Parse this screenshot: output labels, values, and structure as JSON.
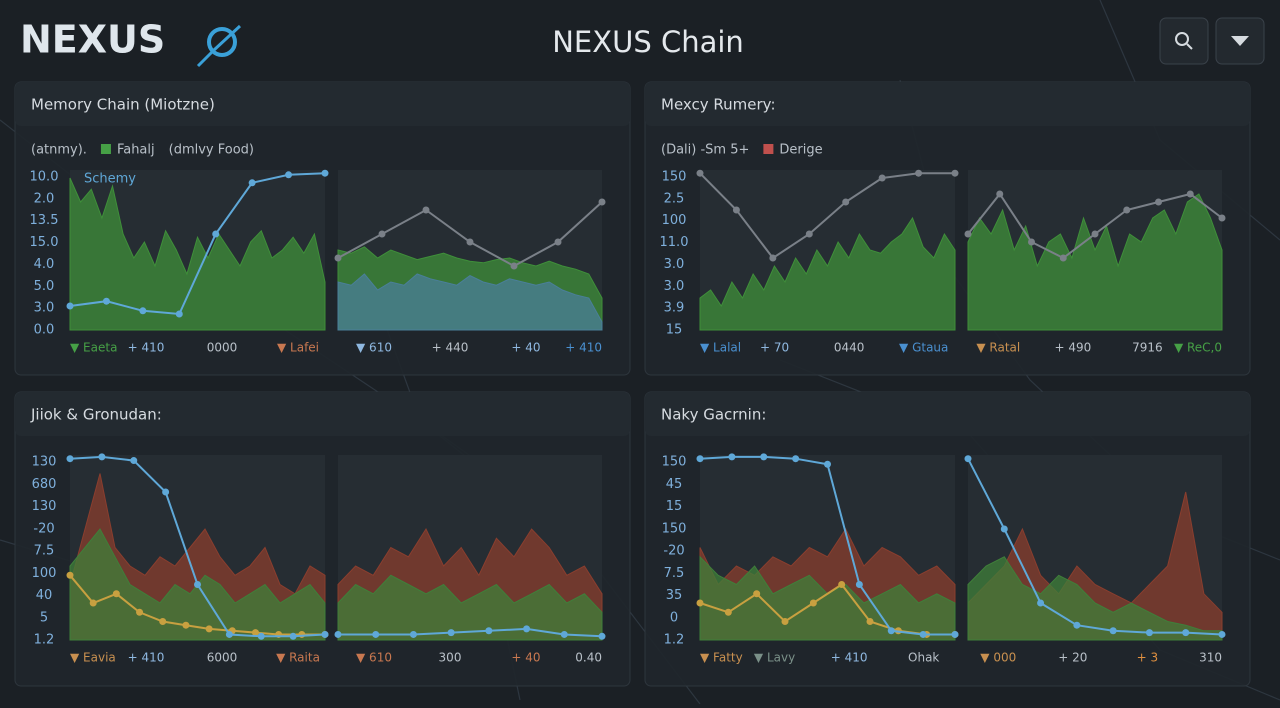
{
  "header": {
    "logo": "NEXUS",
    "title": "NEXUS Chain"
  },
  "panels": [
    {
      "title": "Memory Chain (Miotzne)",
      "overlay": "Schemy",
      "legend": [
        {
          "text": "(atnmy)."
        },
        {
          "text": "Fahalj",
          "color": "#46a046"
        },
        {
          "text": "(dmlvy Food)"
        }
      ],
      "y_labels": [
        "10.0",
        "2.0",
        "13.5",
        "15.0",
        "4.0",
        "5.0",
        "3.0",
        "0.0"
      ],
      "footer": [
        {
          "text": "▼ Eaeta",
          "color": "#46a046"
        },
        {
          "text": "+ 410",
          "color": "#8fb8e0"
        },
        {
          "text": "0000",
          "color": "#b8c0c8"
        },
        {
          "text": "▼ Lafei",
          "color": "#c87850"
        },
        {
          "text": "▼ 610",
          "color": "#8fb8e0"
        },
        {
          "text": "+ 440",
          "color": "#b8c0c8"
        },
        {
          "text": "+ 40",
          "color": "#8fb8e0"
        },
        {
          "text": "+ 410",
          "color": "#4a90d0"
        }
      ],
      "charts": [
        {
          "ylim": [
            0,
            100
          ],
          "series": [
            {
              "kind": "area",
              "color": "#3f8f3a",
              "values": [
                95,
                80,
                88,
                70,
                90,
                60,
                45,
                55,
                40,
                62,
                50,
                35,
                58,
                45,
                60,
                50,
                40,
                55,
                62,
                45,
                50,
                58,
                48,
                60,
                30
              ]
            },
            {
              "kind": "line",
              "color": "#5fa8d8",
              "values": [
                15,
                18,
                12,
                10,
                60,
                92,
                97,
                98
              ]
            }
          ]
        },
        {
          "ylim": [
            0,
            100
          ],
          "series": [
            {
              "kind": "area",
              "color": "#3f8f3a",
              "values": [
                50,
                48,
                52,
                45,
                50,
                47,
                44,
                46,
                48,
                45,
                43,
                42,
                44,
                45,
                42,
                40,
                43,
                40,
                38,
                35,
                20
              ]
            },
            {
              "kind": "area",
              "color": "#4a7f9a",
              "values": [
                30,
                28,
                35,
                25,
                30,
                28,
                35,
                32,
                30,
                28,
                34,
                30,
                28,
                32,
                30,
                28,
                30,
                25,
                22,
                20,
                5
              ]
            },
            {
              "kind": "line",
              "color": "#7a8088",
              "values": [
                45,
                60,
                75,
                55,
                40,
                55,
                80
              ]
            }
          ]
        }
      ]
    },
    {
      "title": "Mexcy Rumery:",
      "legend": [
        {
          "text": "(Dali) -Sm 5+"
        },
        {
          "text": "Derige",
          "color": "#c0504d"
        }
      ],
      "y_labels": [
        "150",
        "2.5",
        "100",
        "11.0",
        "3.0",
        "3.0",
        "3.9",
        "15"
      ],
      "footer": [
        {
          "text": "▼ Lalal",
          "color": "#4a90d0"
        },
        {
          "text": "+ 70",
          "color": "#8fb8e0"
        },
        {
          "text": "0440",
          "color": "#b8c0c8"
        },
        {
          "text": "▼ Gtaua",
          "color": "#4a90d0"
        },
        {
          "text": "▼ Ratal",
          "color": "#c89050"
        },
        {
          "text": "+ 490",
          "color": "#b8c0c8"
        },
        {
          "text": "7916",
          "color": "#b8c0c8"
        },
        {
          "text": "▼ ReC,0",
          "color": "#46a046"
        }
      ],
      "charts": [
        {
          "ylim": [
            0,
            100
          ],
          "series": [
            {
              "kind": "area",
              "color": "#3f8f3a",
              "values": [
                20,
                25,
                15,
                30,
                20,
                35,
                25,
                40,
                30,
                45,
                35,
                50,
                40,
                55,
                45,
                60,
                50,
                48,
                55,
                60,
                70,
                52,
                45,
                60,
                50
              ]
            },
            {
              "kind": "line",
              "color": "#7a8088",
              "values": [
                98,
                75,
                45,
                60,
                80,
                95,
                98,
                98
              ]
            }
          ]
        },
        {
          "ylim": [
            0,
            100
          ],
          "series": [
            {
              "kind": "area",
              "color": "#3f8f3a",
              "values": [
                55,
                70,
                60,
                75,
                50,
                65,
                40,
                55,
                60,
                45,
                70,
                50,
                65,
                40,
                60,
                55,
                70,
                75,
                60,
                80,
                85,
                70,
                50
              ]
            },
            {
              "kind": "line",
              "color": "#7a8088",
              "values": [
                60,
                85,
                55,
                45,
                60,
                75,
                80,
                85,
                70
              ]
            }
          ]
        }
      ]
    },
    {
      "title": "Jiiok & Gronudan:",
      "y_labels": [
        "130",
        "680",
        "130",
        "-20",
        "7.5",
        "100",
        "40",
        "5",
        "1.2"
      ],
      "footer": [
        {
          "text": "▼ Eavia",
          "color": "#c89050"
        },
        {
          "text": "+ 410",
          "color": "#8fb8e0"
        },
        {
          "text": "6000",
          "color": "#b8c0c8"
        },
        {
          "text": "▼ Raita",
          "color": "#c87850"
        },
        {
          "text": "▼ 610",
          "color": "#c87850"
        },
        {
          "text": "300",
          "color": "#b8c0c8"
        },
        {
          "text": "+ 40",
          "color": "#c87850"
        },
        {
          "text": "0.40",
          "color": "#b8c0c8"
        }
      ],
      "charts": [
        {
          "ylim": [
            0,
            100
          ],
          "series": [
            {
              "kind": "area",
              "color": "#8a3e2e",
              "values": [
                30,
                60,
                90,
                50,
                40,
                35,
                45,
                40,
                50,
                60,
                45,
                35,
                40,
                50,
                30,
                25,
                40,
                35
              ]
            },
            {
              "kind": "area",
              "color": "#3f7f3a",
              "values": [
                40,
                50,
                60,
                45,
                30,
                25,
                20,
                30,
                25,
                35,
                30,
                20,
                25,
                30,
                20,
                25,
                30,
                20
              ]
            },
            {
              "kind": "line",
              "color": "#c8a040",
              "values": [
                35,
                20,
                25,
                15,
                10,
                8,
                6,
                5,
                4,
                3,
                3,
                3
              ]
            },
            {
              "kind": "line",
              "color": "#5fa8d8",
              "values": [
                98,
                99,
                97,
                80,
                30,
                3,
                2,
                2,
                3
              ]
            }
          ]
        },
        {
          "ylim": [
            0,
            100
          ],
          "series": [
            {
              "kind": "area",
              "color": "#8a3e2e",
              "values": [
                30,
                40,
                35,
                50,
                45,
                60,
                40,
                50,
                35,
                55,
                45,
                60,
                50,
                35,
                40,
                25
              ]
            },
            {
              "kind": "area",
              "color": "#3f7f3a",
              "values": [
                20,
                30,
                25,
                35,
                30,
                25,
                30,
                20,
                25,
                30,
                20,
                25,
                30,
                20,
                25,
                15
              ]
            },
            {
              "kind": "line",
              "color": "#5fa8d8",
              "values": [
                3,
                3,
                3,
                4,
                5,
                6,
                3,
                2
              ]
            }
          ]
        }
      ]
    },
    {
      "title": "Naky Gacrnin:",
      "y_labels": [
        "150",
        "45",
        "15",
        "150",
        "-20",
        "7.5",
        "35",
        "0",
        "1.2"
      ],
      "footer": [
        {
          "text": "▼ Fatty",
          "color": "#c89050"
        },
        {
          "text": "▼ Lavy",
          "color": "#7a9088"
        },
        {
          "text": "+ 410",
          "color": "#8fb8e0"
        },
        {
          "text": "Ohak",
          "color": "#b8c0c8"
        },
        {
          "text": "▼ 000",
          "color": "#c89050"
        },
        {
          "text": "+ 20",
          "color": "#b8c0c8"
        },
        {
          "text": "+ 3",
          "color": "#e09040"
        },
        {
          "text": "310",
          "color": "#b8c0c8"
        }
      ],
      "charts": [
        {
          "ylim": [
            0,
            100
          ],
          "series": [
            {
              "kind": "area",
              "color": "#8a3e2e",
              "values": [
                50,
                30,
                40,
                35,
                45,
                40,
                50,
                45,
                60,
                40,
                50,
                45,
                35,
                40,
                30
              ]
            },
            {
              "kind": "area",
              "color": "#3f7f3a",
              "values": [
                45,
                35,
                30,
                40,
                25,
                30,
                35,
                25,
                30,
                20,
                25,
                30,
                20,
                25,
                20
              ]
            },
            {
              "kind": "line",
              "color": "#c8a040",
              "values": [
                20,
                15,
                25,
                10,
                20,
                30,
                10,
                5,
                3,
                3
              ]
            },
            {
              "kind": "line",
              "color": "#5fa8d8",
              "values": [
                98,
                99,
                99,
                98,
                95,
                30,
                5,
                3,
                3
              ]
            }
          ]
        },
        {
          "ylim": [
            0,
            100
          ],
          "series": [
            {
              "kind": "area",
              "color": "#8a3e2e",
              "values": [
                20,
                30,
                40,
                60,
                35,
                25,
                40,
                30,
                25,
                20,
                30,
                40,
                80,
                25,
                15
              ]
            },
            {
              "kind": "area",
              "color": "#3f7f3a",
              "values": [
                30,
                40,
                45,
                30,
                25,
                35,
                30,
                20,
                15,
                20,
                15,
                10,
                8,
                5,
                5
              ]
            },
            {
              "kind": "line",
              "color": "#5fa8d8",
              "values": [
                98,
                60,
                20,
                8,
                5,
                4,
                4,
                3
              ]
            }
          ]
        }
      ]
    }
  ]
}
